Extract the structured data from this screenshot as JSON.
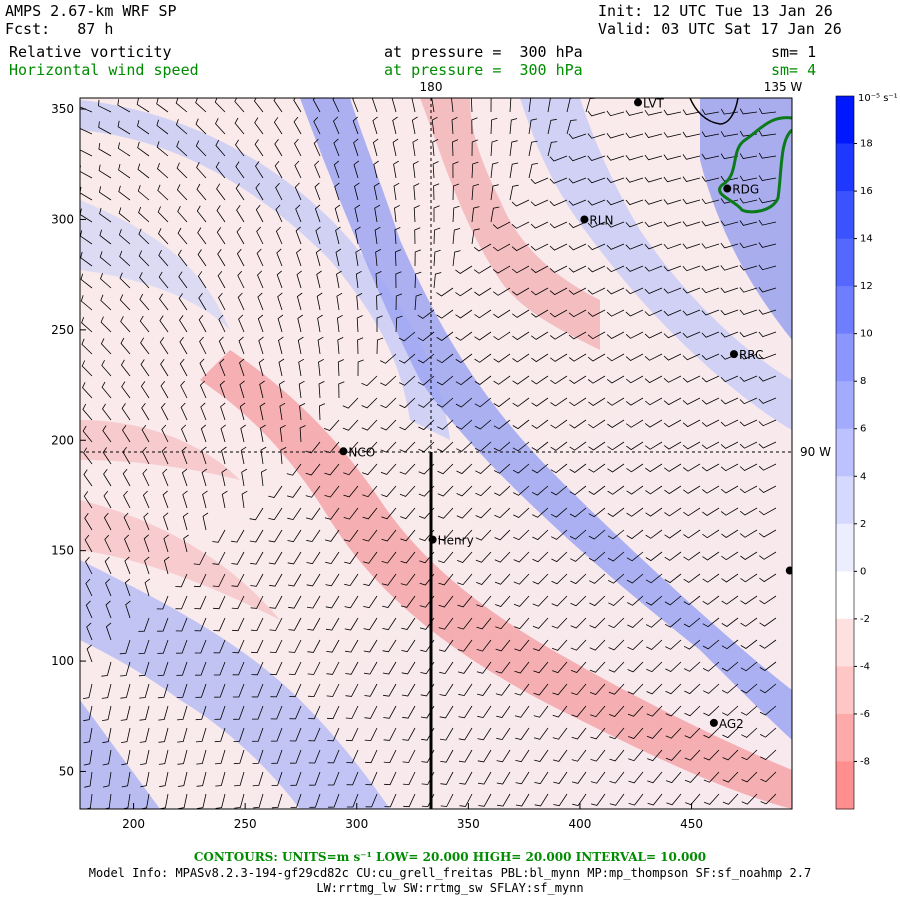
{
  "header": {
    "model": "AMPS 2.67-km WRF SP",
    "forecast": "Fcst:   87 h",
    "init": "Init: 12 UTC Tue 13 Jan 26",
    "valid": "Valid: 03 UTC Sat 17 Jan 26",
    "field1_name": "Relative vorticity",
    "field1_level": "at pressure =  300 hPa",
    "field1_sm": "sm= 1",
    "field2_name": "Horizontal wind speed",
    "field2_level": "at pressure =  300 hPa",
    "field2_sm": "sm= 4"
  },
  "map": {
    "x_ticks": [
      "200",
      "250",
      "300",
      "350",
      "400",
      "450"
    ],
    "y_ticks": [
      "50",
      "100",
      "150",
      "200",
      "250",
      "300",
      "350"
    ],
    "x_range": [
      176,
      495
    ],
    "y_range": [
      33,
      355
    ],
    "meridian_labels": [
      "180",
      "135 W"
    ],
    "parallel_label": "90 W",
    "stations": [
      {
        "name": "LVT",
        "x": 426,
        "y": 353
      },
      {
        "name": "RDG",
        "x": 466,
        "y": 314
      },
      {
        "name": "RLN",
        "x": 402,
        "y": 300
      },
      {
        "name": "RRC",
        "x": 469,
        "y": 239
      },
      {
        "name": "NCO",
        "x": 294,
        "y": 195
      },
      {
        "name": "Henry",
        "x": 334,
        "y": 155
      },
      {
        "name": "AG2",
        "x": 460,
        "y": 72
      },
      {
        "name": "",
        "x": 494,
        "y": 141
      }
    ]
  },
  "colorbar": {
    "unit": "10⁻⁵ s⁻¹",
    "labels": [
      "18",
      "16",
      "14",
      "12",
      "10",
      "8",
      "6",
      "4",
      "2",
      "0",
      "-2",
      "-4",
      "-6",
      "-8"
    ],
    "colors": [
      "#0018ff",
      "#1f38ff",
      "#3a52ff",
      "#5468ff",
      "#6e7eff",
      "#8b96ff",
      "#a3abff",
      "#bcc1ff",
      "#d6d9ff",
      "#eceeff",
      "#ffffff",
      "#ffe0e0",
      "#ffc6c6",
      "#ffaaaa",
      "#ff8e8e"
    ]
  },
  "footer": {
    "contours": "CONTOURS:  UNITS=m s⁻¹  LOW=  20.000       HIGH=  20.000       INTERVAL=   10.000",
    "model_info": "Model Info: MPASv8.2.3-194-gf29cd82c CU:cu_grell_freitas PBL:bl_mynn MP:mp_thompson SF:sf_noahmp 2.7",
    "physics": "LW:rrtmg_lw SW:rrtmg_sw SFLAY:sf_mynn"
  }
}
